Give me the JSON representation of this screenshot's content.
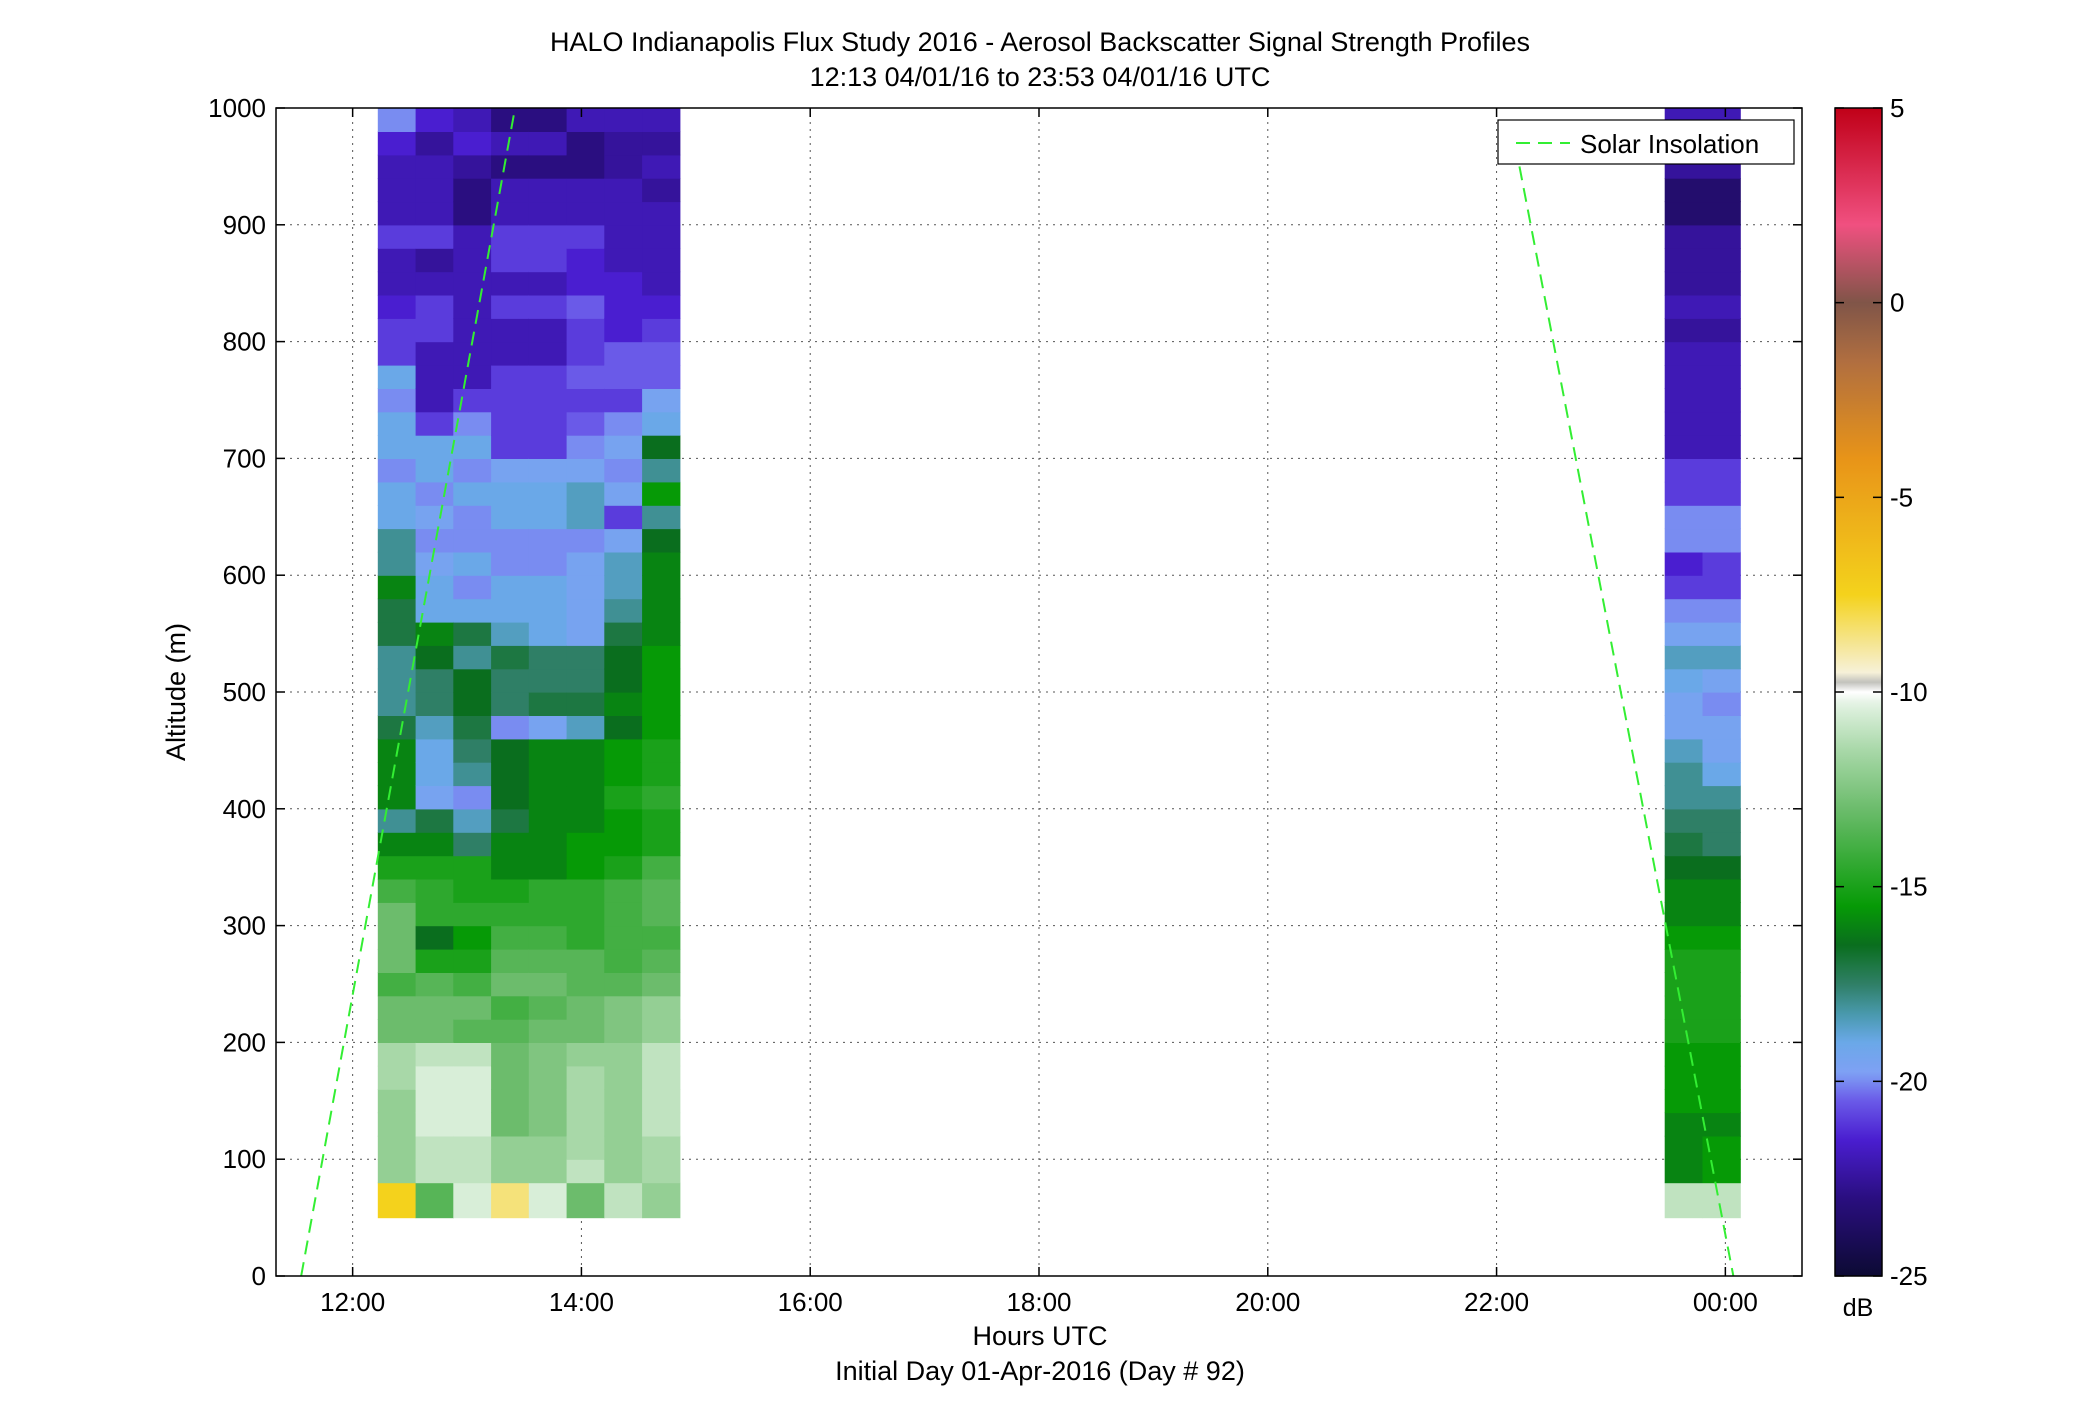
{
  "chart_data": {
    "type": "heatmap",
    "title": "HALO Indianapolis Flux Study 2016 - Aerosol Backscatter Signal Strength Profiles",
    "subtitle": "12:13 04/01/16 to 23:53 04/01/16  UTC",
    "xlabel": "Hours UTC",
    "xlabel2": "Initial Day 01-Apr-2016 (Day # 92)",
    "ylabel": "Altitude (m)",
    "xlim": [
      11.33,
      24.67
    ],
    "ylim": [
      0,
      1000
    ],
    "x_ticks": [
      12,
      14,
      16,
      18,
      20,
      22,
      24
    ],
    "x_tick_labels": [
      "12:00",
      "14:00",
      "16:00",
      "18:00",
      "20:00",
      "22:00",
      "00:00"
    ],
    "y_ticks": [
      0,
      100,
      200,
      300,
      400,
      500,
      600,
      700,
      800,
      900,
      1000
    ],
    "y_tick_labels": [
      "0",
      "100",
      "200",
      "300",
      "400",
      "500",
      "600",
      "700",
      "800",
      "900",
      "1000"
    ],
    "grid": true,
    "legend": {
      "position": "top-right",
      "entries": [
        {
          "label": "Solar Insolation",
          "style": "dashed",
          "color": "#33ee33"
        }
      ]
    },
    "colorbar": {
      "label": "dB",
      "range": [
        -25,
        5
      ],
      "ticks": [
        5,
        0,
        -5,
        -10,
        -15,
        -20,
        -25
      ],
      "tick_labels": [
        "5",
        "0",
        "-5",
        "-10",
        "-15",
        "-20",
        "-25"
      ]
    },
    "altitude_bins": [
      50,
      80,
      100,
      120,
      140,
      160,
      180,
      200,
      220,
      240,
      260,
      280,
      300,
      320,
      340,
      360,
      380,
      400,
      420,
      440,
      460,
      480,
      500,
      520,
      540,
      560,
      580,
      600,
      620,
      640,
      660,
      680,
      700,
      720,
      740,
      760,
      780,
      800,
      820,
      840,
      860,
      880,
      900,
      920,
      940,
      960,
      980,
      1000
    ],
    "profiles": [
      {
        "time": 12.22,
        "dt": 0.33,
        "db": [
          -7.5,
          -12,
          -12,
          -12,
          -12,
          -11.5,
          -11.5,
          -13,
          -13,
          -14,
          -13,
          -13,
          -13,
          -14,
          -15,
          -16,
          -18,
          -16,
          -16,
          -16,
          -17,
          -18,
          -18,
          -18,
          -17,
          -17,
          -16,
          -18,
          -18,
          -19,
          -19,
          -20,
          -19,
          -19,
          -20,
          -19,
          -21,
          -21,
          -21.5,
          -22,
          -22,
          -21,
          -22,
          -22,
          -22,
          -21.5,
          -20,
          -20.5
        ]
      },
      {
        "time": 12.55,
        "dt": 0.33,
        "db": [
          -13.5,
          -11,
          -11,
          -10.5,
          -10.5,
          -10.5,
          -11,
          -13,
          -13,
          -13.5,
          -15,
          -16.5,
          -14.5,
          -14.5,
          -15,
          -16,
          -17,
          -19.5,
          -19,
          -19,
          -18.5,
          -17.5,
          -17.5,
          -16.5,
          -16,
          -19,
          -19,
          -19.5,
          -20,
          -19.5,
          -20,
          -19,
          -19,
          -21,
          -22,
          -22,
          -22,
          -21,
          -21,
          -22,
          -22.5,
          -21,
          -22,
          -22,
          -22,
          -22.5,
          -21.5,
          -20
        ]
      },
      {
        "time": 12.88,
        "dt": 0.33,
        "db": [
          -10.5,
          -11,
          -11,
          -10.5,
          -10.5,
          -10.5,
          -11,
          -13.5,
          -13,
          -14,
          -15,
          -15.5,
          -14.5,
          -15,
          -15,
          -17.5,
          -18.5,
          -20,
          -18,
          -17.5,
          -17,
          -16.5,
          -16.5,
          -18,
          -17,
          -19,
          -20,
          -19,
          -20,
          -20,
          -19,
          -20,
          -19,
          -20,
          -21,
          -22,
          -22,
          -22,
          -22,
          -22,
          -22,
          -22,
          -23,
          -23,
          -22.5,
          -21.5,
          -22,
          -22
        ]
      },
      {
        "time": 13.21,
        "dt": 0.33,
        "db": [
          -8.5,
          -12,
          -12,
          -13,
          -13,
          -13,
          -13,
          -13.5,
          -14,
          -13,
          -13.5,
          -14,
          -14.5,
          -15,
          -16,
          -16,
          -17,
          -16.5,
          -16.5,
          -16.5,
          -20,
          -17.5,
          -17.5,
          -17,
          -18.5,
          -19,
          -19,
          -20,
          -20,
          -19,
          -19,
          -19.5,
          -21,
          -21,
          -21,
          -21,
          -22,
          -22,
          -21,
          -22,
          -21,
          -21,
          -22,
          -22,
          -23,
          -22,
          -23,
          -23
        ]
      },
      {
        "time": 13.54,
        "dt": 0.33,
        "db": [
          -10.5,
          -12,
          -12,
          -12.5,
          -12.5,
          -12.5,
          -12.5,
          -13,
          -13.5,
          -13,
          -13.5,
          -14,
          -14.5,
          -14.5,
          -16,
          -16,
          -16,
          -16,
          -16,
          -16,
          -19.5,
          -17,
          -17.5,
          -17.5,
          -19,
          -19,
          -19,
          -20,
          -20,
          -19,
          -19,
          -19.5,
          -21,
          -21,
          -21,
          -21,
          -22,
          -22,
          -21,
          -22,
          -21,
          -21,
          -22,
          -22,
          -23,
          -22,
          -23,
          -23
        ]
      },
      {
        "time": 13.87,
        "dt": 0.33,
        "db": [
          -13,
          -11,
          -11.5,
          -11.5,
          -11.5,
          -11.5,
          -12,
          -13,
          -13,
          -13.5,
          -13.5,
          -14.5,
          -14.5,
          -14.5,
          -15.5,
          -15.5,
          -16,
          -16,
          -16,
          -16,
          -18.5,
          -17,
          -17.5,
          -17.5,
          -19.5,
          -19.5,
          -19.5,
          -19.5,
          -20,
          -18.5,
          -18.5,
          -19.5,
          -20,
          -20.5,
          -21,
          -20.5,
          -21,
          -21,
          -20.5,
          -21.5,
          -21.5,
          -21,
          -22,
          -22,
          -23,
          -23,
          -22,
          -22
        ]
      },
      {
        "time": 14.2,
        "dt": 0.33,
        "db": [
          -11,
          -12,
          -12,
          -12,
          -12,
          -12,
          -12,
          -12.5,
          -12.5,
          -13.5,
          -14,
          -14,
          -14,
          -14,
          -15,
          -15.5,
          -15.5,
          -15,
          -15.5,
          -15.5,
          -16.5,
          -16,
          -16.5,
          -16.5,
          -17,
          -18,
          -18.5,
          -18.5,
          -19.5,
          -21,
          -19.5,
          -20,
          -19.5,
          -20,
          -21,
          -20.5,
          -20.5,
          -21.5,
          -21.5,
          -21.5,
          -22,
          -22,
          -22,
          -22,
          -22.5,
          -22.5,
          -22,
          -22
        ]
      },
      {
        "time": 14.53,
        "dt": 0.33,
        "db": [
          -12,
          -11.5,
          -11.5,
          -11,
          -11,
          -11,
          -11,
          -12,
          -12,
          -13,
          -13.5,
          -14,
          -13.5,
          -13.5,
          -14,
          -15,
          -15,
          -14.5,
          -15,
          -15,
          -15.5,
          -15.5,
          -15.5,
          -15.5,
          -16,
          -16,
          -16,
          -16,
          -16.5,
          -18,
          -15.5,
          -18,
          -16.5,
          -19,
          -19.5,
          -20.5,
          -20.5,
          -21,
          -21.5,
          -22,
          -22,
          -22,
          -22,
          -22.5,
          -22,
          -22.5,
          -22,
          -22
        ]
      },
      {
        "time": 23.47,
        "dt": 0.33,
        "db": [
          -11,
          -16,
          -16,
          -16,
          -15.5,
          -15.5,
          -15.5,
          -15,
          -15,
          -15,
          -15,
          -15.5,
          -16,
          -16,
          -16.5,
          -17,
          -17.5,
          -18,
          -18,
          -18.5,
          -19.5,
          -19.5,
          -19,
          -18.5,
          -19.5,
          -20,
          -21,
          -21.5,
          -20,
          -20,
          -21,
          -21,
          -22,
          -22,
          -22,
          -22,
          -22,
          -22.5,
          -22,
          -22.5,
          -22.5,
          -22.5,
          -23.5,
          -23.5,
          -22.5,
          -22,
          -22,
          -22
        ]
      },
      {
        "time": 23.8,
        "dt": 0.33,
        "db": [
          -11,
          -15.5,
          -15.5,
          -16,
          -15.5,
          -15.5,
          -15.5,
          -15,
          -15,
          -15,
          -15,
          -15.5,
          -16,
          -16,
          -16.5,
          -17.5,
          -17.5,
          -18,
          -19,
          -19.5,
          -19.5,
          -20,
          -19.5,
          -18.5,
          -19.5,
          -20,
          -21,
          -21,
          -20,
          -20,
          -21,
          -21,
          -22,
          -22,
          -22,
          -22,
          -22,
          -22.5,
          -22,
          -22.5,
          -22.5,
          -22.5,
          -23.5,
          -23.5,
          -22.5,
          -22,
          -22,
          -22
        ]
      }
    ],
    "solar_insolation_segments": [
      {
        "x": [
          11.55,
          13.42
        ],
        "y": [
          0,
          1000
        ]
      },
      {
        "x": [
          22.2,
          24.07
        ],
        "y": [
          950,
          0
        ]
      }
    ]
  }
}
